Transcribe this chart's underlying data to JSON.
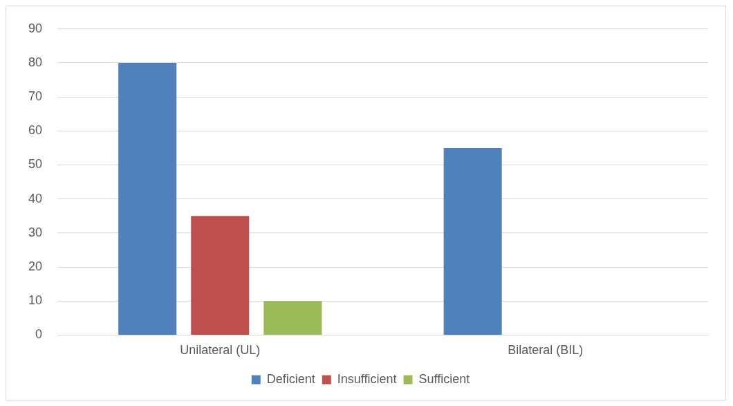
{
  "chart_data": {
    "type": "bar",
    "categories": [
      "Unilateral (UL)",
      "Bilateral (BIL)"
    ],
    "series": [
      {
        "name": "Deficient",
        "color": "#4f81bd",
        "values": [
          80,
          55
        ]
      },
      {
        "name": "Insufficient",
        "color": "#c0504d",
        "values": [
          35,
          0
        ]
      },
      {
        "name": "Sufficient",
        "color": "#9bbb59",
        "values": [
          10,
          0
        ]
      }
    ],
    "ylim": [
      0,
      90
    ],
    "yticks": [
      0,
      10,
      20,
      30,
      40,
      50,
      60,
      70,
      80,
      90
    ],
    "grid": "y",
    "legend": "bottom"
  }
}
